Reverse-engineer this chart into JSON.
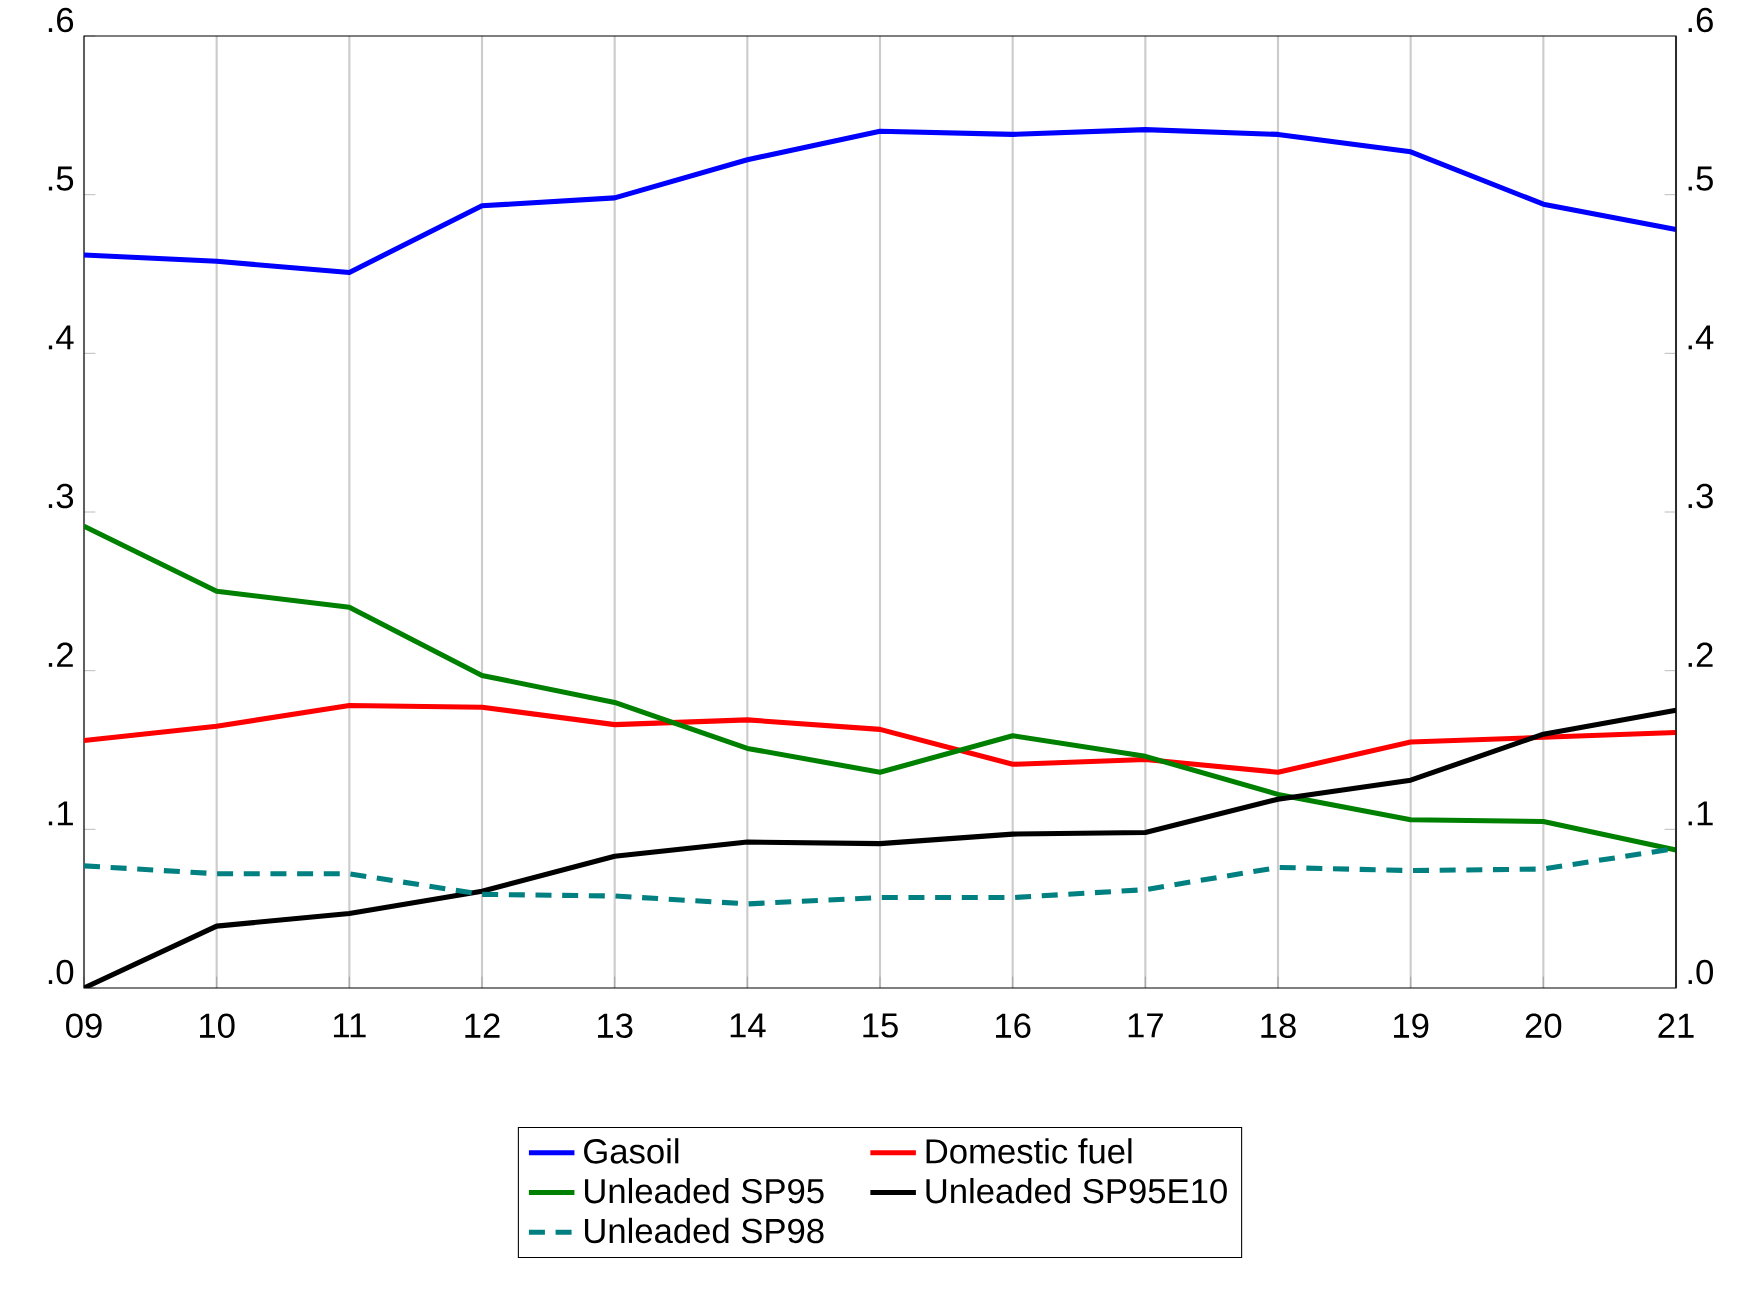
{
  "chart_data": {
    "type": "line",
    "categories": [
      "09",
      "10",
      "11",
      "12",
      "13",
      "14",
      "15",
      "16",
      "17",
      "18",
      "19",
      "20",
      "21"
    ],
    "series": [
      {
        "name": "Gasoil",
        "color": "#0000ff",
        "line_style": "solid",
        "values": [
          0.462,
          0.458,
          0.451,
          0.493,
          0.498,
          0.522,
          0.54,
          0.538,
          0.541,
          0.538,
          0.527,
          0.494,
          0.478
        ]
      },
      {
        "name": "Domestic fuel",
        "color": "#ff0000",
        "line_style": "solid",
        "values": [
          0.156,
          0.165,
          0.178,
          0.177,
          0.166,
          0.169,
          0.163,
          0.141,
          0.144,
          0.136,
          0.155,
          0.158,
          0.161
        ]
      },
      {
        "name": "Unleaded SP95",
        "color": "#008000",
        "line_style": "solid",
        "values": [
          0.291,
          0.25,
          0.24,
          0.197,
          0.18,
          0.151,
          0.136,
          0.159,
          0.146,
          0.122,
          0.106,
          0.105,
          0.087
        ]
      },
      {
        "name": "Unleaded SP95E10",
        "color": "#000000",
        "line_style": "solid",
        "values": [
          0.0,
          0.039,
          0.047,
          0.061,
          0.083,
          0.092,
          0.091,
          0.097,
          0.098,
          0.119,
          0.131,
          0.16,
          0.175
        ]
      },
      {
        "name": "Unleaded SP98",
        "color": "#008080",
        "line_style": "dashed",
        "values": [
          0.077,
          0.072,
          0.072,
          0.059,
          0.058,
          0.053,
          0.057,
          0.057,
          0.062,
          0.076,
          0.074,
          0.075,
          0.088
        ]
      }
    ],
    "ylim": [
      0,
      0.6
    ],
    "yticks": [
      {
        "value": 0,
        "label": ".0"
      },
      {
        "value": 0.1,
        "label": ".1"
      },
      {
        "value": 0.2,
        "label": ".2"
      },
      {
        "value": 0.3,
        "label": ".3"
      },
      {
        "value": 0.4,
        "label": ".4"
      },
      {
        "value": 0.5,
        "label": ".5"
      },
      {
        "value": 0.6,
        "label": ".6"
      }
    ],
    "y2lim": [
      0,
      0.6
    ],
    "y2ticks": [
      {
        "value": 0,
        "label": ".0"
      },
      {
        "value": 0.1,
        "label": ".1"
      },
      {
        "value": 0.2,
        "label": ".2"
      },
      {
        "value": 0.3,
        "label": ".3"
      },
      {
        "value": 0.4,
        "label": ".4"
      },
      {
        "value": 0.5,
        "label": ".5"
      },
      {
        "value": 0.6,
        "label": ".6"
      }
    ],
    "grid": "x",
    "legend": "bottom"
  }
}
